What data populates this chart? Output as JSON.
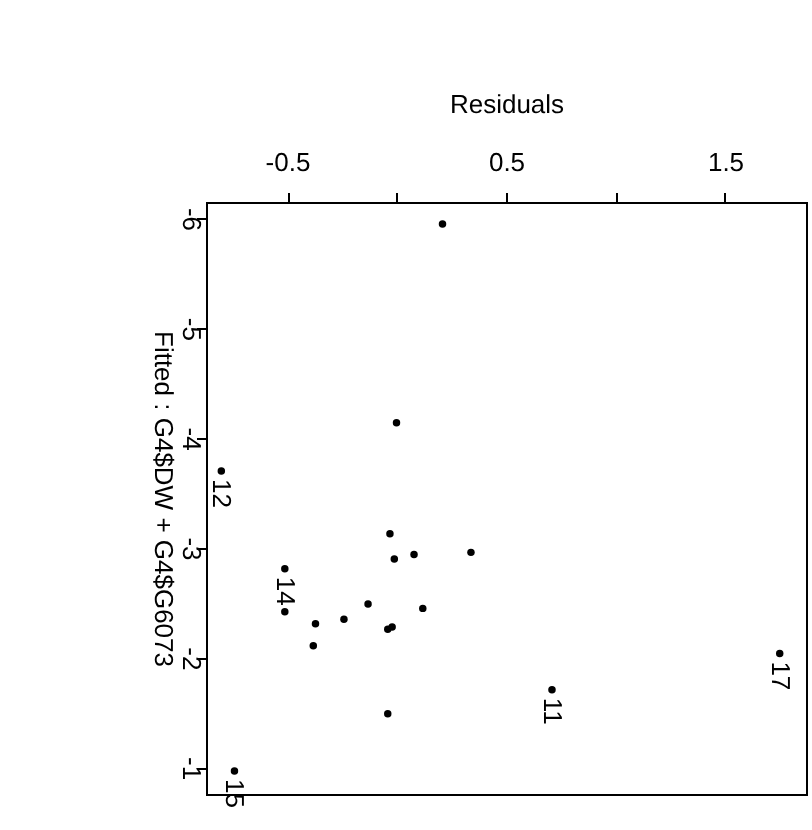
{
  "chart_data": {
    "type": "scatter",
    "xlabel": "Residuals",
    "ylabel": "Fitted : G4$DW + G4$G6073",
    "x": [
      0.21,
      0.0,
      -0.8,
      -0.03,
      -0.01,
      0.08,
      0.34,
      -0.51,
      -0.51,
      -0.37,
      -0.24,
      -0.13,
      0.12,
      -0.04,
      -0.02,
      -0.38,
      -0.04,
      0.71,
      1.75,
      -0.74
    ],
    "series": [
      {
        "color": "#000000",
        "values": [
          -5.95,
          -4.14,
          -3.7,
          -3.13,
          -2.9,
          -2.94,
          -2.96,
          -2.81,
          -2.42,
          -2.31,
          -2.35,
          -2.49,
          -2.45,
          -2.26,
          -2.28,
          -2.11,
          -1.49,
          -1.71,
          -2.04,
          -0.97
        ]
      }
    ],
    "marker": "circle",
    "grid": false,
    "xlim": [
      -0.87,
      1.87
    ],
    "ylim": [
      -0.76,
      -6.15
    ],
    "xticks": [
      -0.5,
      {
        "value": 0,
        "label": null
      },
      0.5,
      {
        "value": 1,
        "label": null
      },
      1.5
    ],
    "yticks": [
      -6,
      -5,
      -4,
      -3,
      -2,
      -1
    ],
    "annotations": [
      {
        "text": "12",
        "x": -0.8,
        "y": -3.7
      },
      {
        "text": "14",
        "x": -0.51,
        "y": -2.81
      },
      {
        "text": "11",
        "x": 0.71,
        "y": -1.71
      },
      {
        "text": "17",
        "x": 1.75,
        "y": -2.04
      },
      {
        "text": "15",
        "x": -0.74,
        "y": -0.97
      }
    ]
  }
}
